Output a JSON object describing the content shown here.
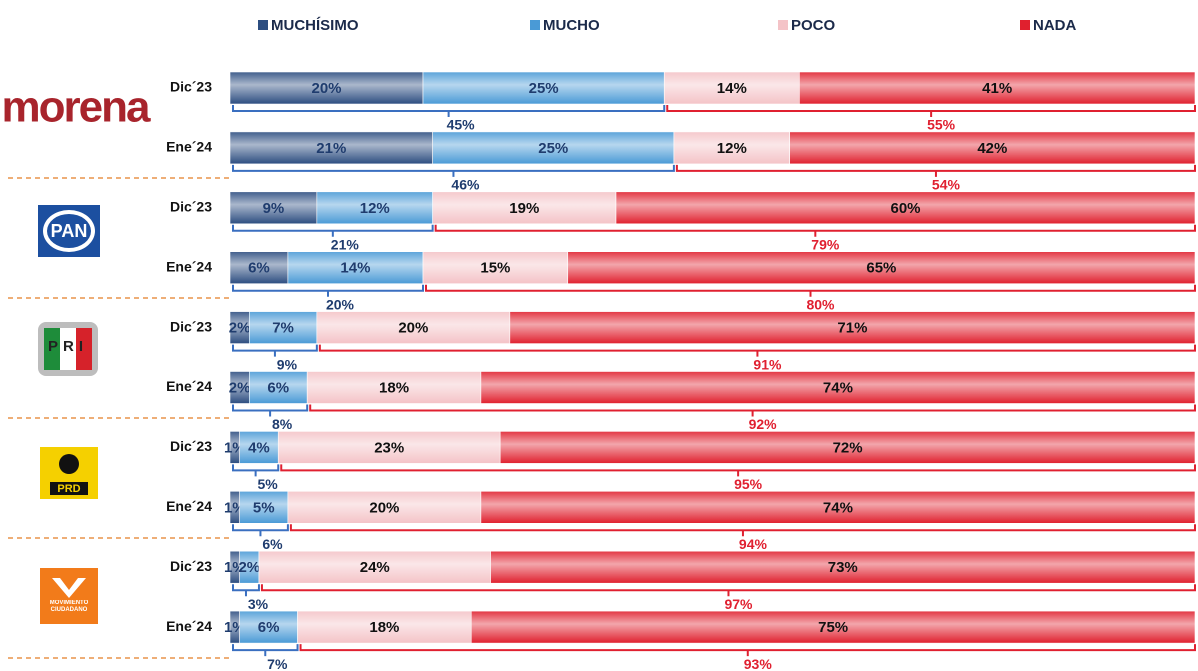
{
  "chart_data": {
    "type": "bar",
    "orientation": "horizontal",
    "stacked": true,
    "parties": [
      "morena",
      "PAN",
      "PRI",
      "PRD",
      "MOVIMIENTO CIUDADANO"
    ],
    "categories": [
      "Dic´23",
      "Ene´24",
      "Dic´23",
      "Ene´24",
      "Dic´23",
      "Ene´24",
      "Dic´23",
      "Ene´24",
      "Dic´23",
      "Ene´24"
    ],
    "xlim": [
      0,
      100
    ],
    "series": [
      {
        "name": "MUCHÍSIMO",
        "color": "#2c4d80",
        "label_color": "#1f3c6e",
        "values": [
          20,
          21,
          9,
          6,
          2,
          2,
          1,
          1,
          1,
          1
        ],
        "value_labels": [
          "20%",
          "21%",
          "9%",
          "6%",
          "2%",
          "2%",
          "1%",
          "1%",
          "1%",
          "1%"
        ]
      },
      {
        "name": "MUCHO",
        "color": "#4a9ad6",
        "label_color": "#1f3c6e",
        "values": [
          25,
          25,
          12,
          14,
          7,
          6,
          4,
          5,
          2,
          6
        ],
        "value_labels": [
          "25%",
          "25%",
          "12%",
          "14%",
          "7%",
          "6%",
          "4%",
          "5%",
          "2%",
          "6%"
        ]
      },
      {
        "name": "POCO",
        "color": "#f4c3c7",
        "label_color": "#111111",
        "values": [
          14,
          12,
          19,
          15,
          20,
          18,
          23,
          20,
          24,
          18
        ],
        "value_labels": [
          "14%",
          "12%",
          "19%",
          "15%",
          "20%",
          "18%",
          "23%",
          "20%",
          "24%",
          "18%"
        ]
      },
      {
        "name": "NADA",
        "color": "#e0202e",
        "label_color": "#111111",
        "values": [
          41,
          42,
          60,
          65,
          71,
          74,
          72,
          74,
          73,
          75
        ],
        "value_labels": [
          "41%",
          "42%",
          "60%",
          "65%",
          "71%",
          "74%",
          "72%",
          "74%",
          "73%",
          "75%"
        ]
      }
    ],
    "totals": {
      "positive": {
        "color": "#3a6fc0",
        "values": [
          45,
          46,
          21,
          20,
          9,
          8,
          5,
          6,
          3,
          7
        ],
        "value_labels": [
          "45%",
          "46%",
          "21%",
          "20%",
          "9%",
          "8%",
          "5%",
          "6%",
          "3%",
          "7%"
        ]
      },
      "negative": {
        "color": "#e02030",
        "values": [
          55,
          54,
          79,
          80,
          91,
          92,
          95,
          94,
          97,
          93
        ],
        "value_labels": [
          "55%",
          "54%",
          "79%",
          "80%",
          "91%",
          "92%",
          "95%",
          "94%",
          "97%",
          "93%"
        ]
      }
    }
  }
}
